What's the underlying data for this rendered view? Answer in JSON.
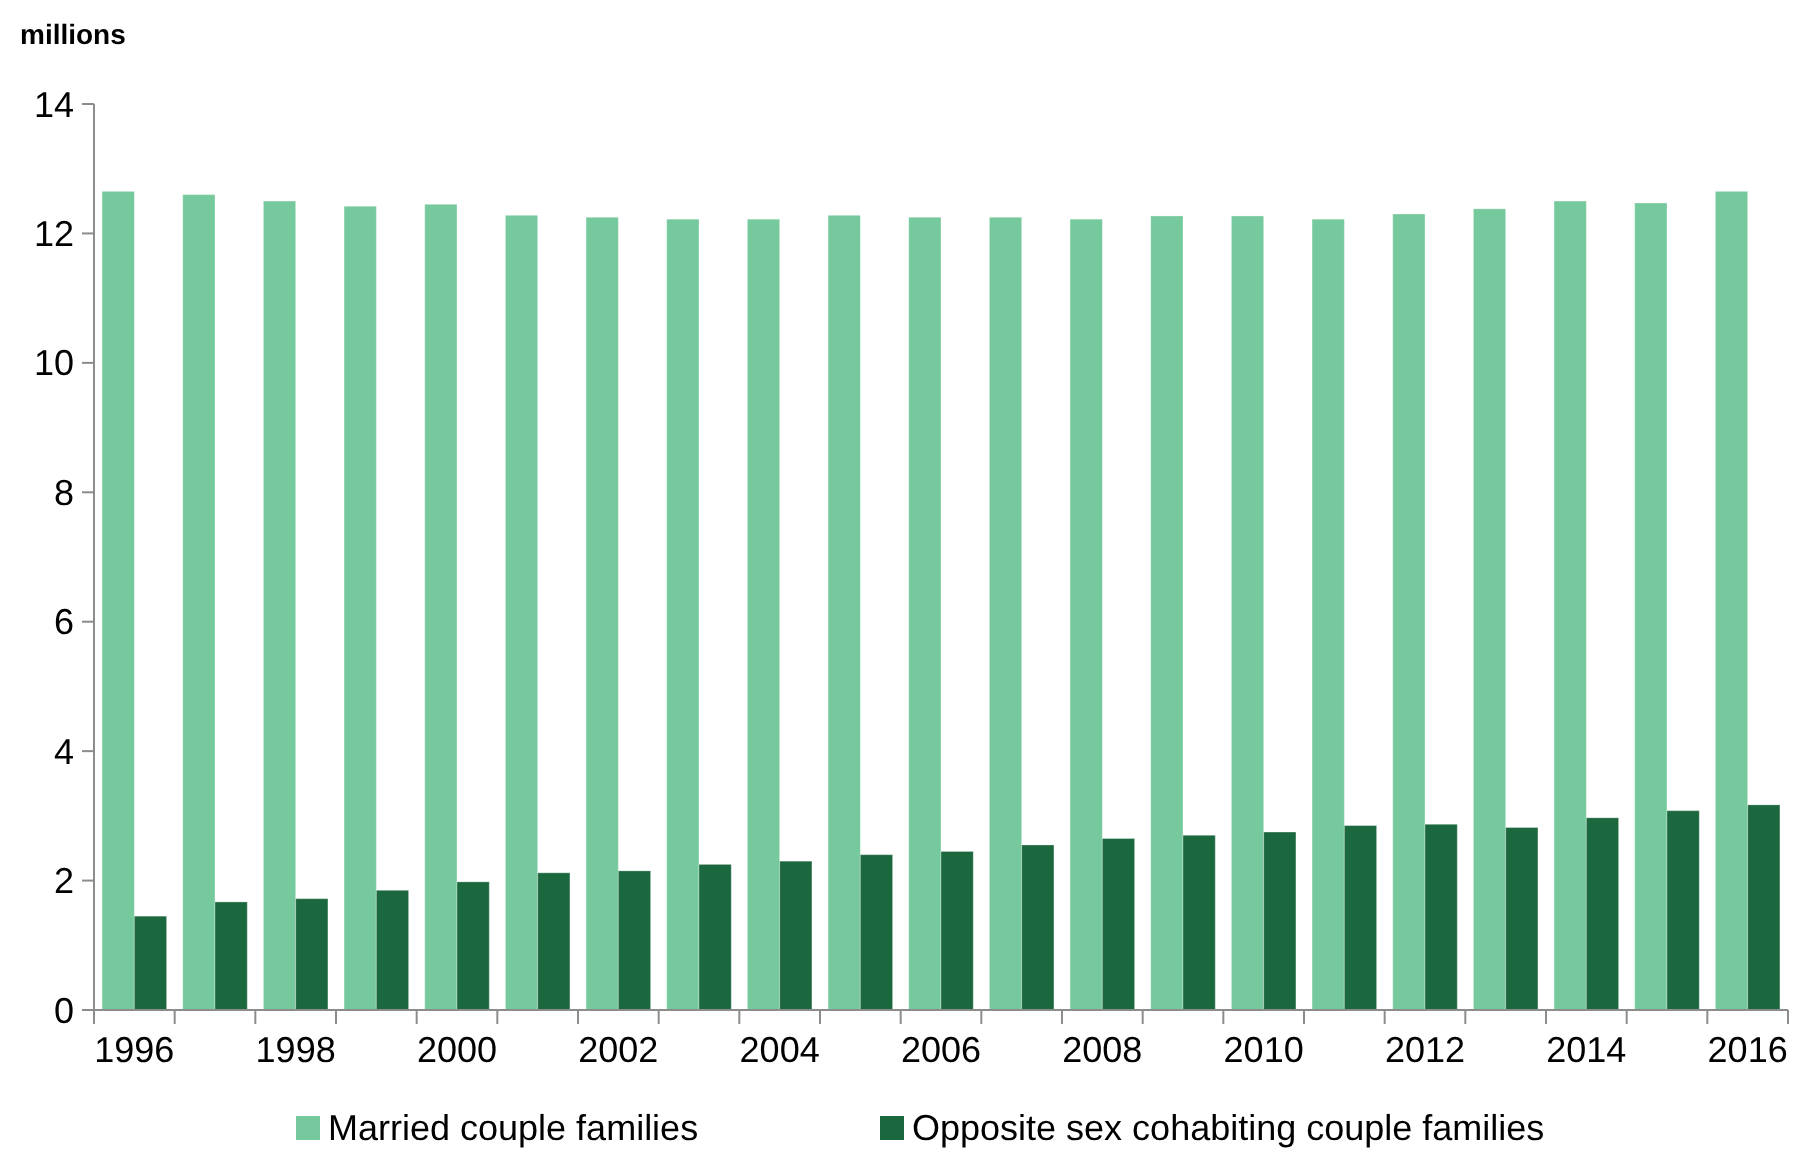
{
  "chart_data": {
    "type": "bar",
    "ylabel": "millions",
    "categories": [
      "1996",
      null,
      "1998",
      null,
      "2000",
      null,
      "2002",
      null,
      "2004",
      null,
      "2006",
      null,
      "2008",
      null,
      "2010",
      null,
      "2012",
      null,
      "2014",
      null,
      "2016"
    ],
    "series": [
      {
        "name": "Married couple families",
        "color": "#76c99c",
        "values": [
          12.65,
          12.6,
          12.5,
          12.42,
          12.45,
          12.28,
          12.25,
          12.22,
          12.22,
          12.28,
          12.25,
          12.25,
          12.22,
          12.27,
          12.27,
          12.22,
          12.3,
          12.38,
          12.5,
          12.47,
          12.65
        ]
      },
      {
        "name": "Opposite sex cohabiting couple families",
        "color": "#1b673e",
        "values": [
          1.45,
          1.67,
          1.72,
          1.85,
          1.98,
          2.12,
          2.15,
          2.25,
          2.3,
          2.4,
          2.45,
          2.55,
          2.65,
          2.7,
          2.75,
          2.85,
          2.87,
          2.82,
          2.97,
          3.08,
          3.17
        ]
      }
    ],
    "ylim": [
      0,
      14
    ],
    "yticks": [
      0,
      2,
      4,
      6,
      8,
      10,
      12,
      14
    ],
    "grid": false,
    "legend": "bottom"
  }
}
